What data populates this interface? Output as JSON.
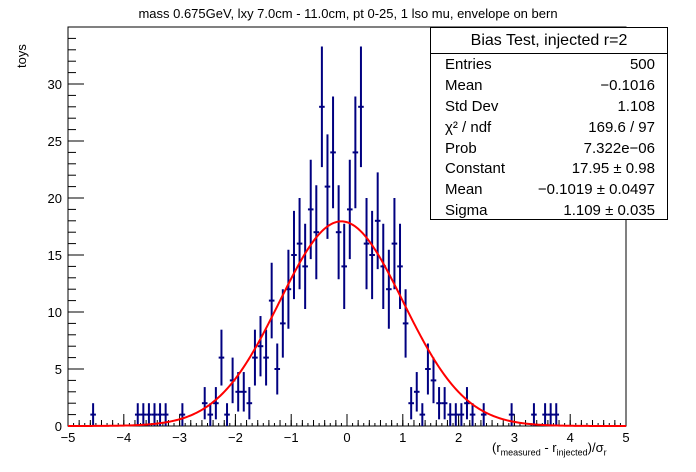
{
  "title": "mass 0.675GeV, lxy 7.0cm - 11.0cm, pt 0-25, 1 lso mu, envelope on bern",
  "ylabel": "toys",
  "xlabel": {
    "pre": "(r",
    "sub1": "measured",
    "mid": " - r",
    "sub2": "injected",
    "post": ")/σ",
    "sub3": "r"
  },
  "stats": {
    "title": "Bias Test, injected r=2",
    "rows": [
      {
        "label": "Entries",
        "value": "500"
      },
      {
        "label": "Mean",
        "value": "−0.1016"
      },
      {
        "label": "Std Dev",
        "value": "1.108"
      },
      {
        "label": "χ² / ndf",
        "value": "169.6 / 97"
      },
      {
        "label": "Prob",
        "value": "7.322e−06"
      },
      {
        "label": "Constant",
        "value": "17.95 ± 0.98"
      },
      {
        "label": "Mean",
        "value": "−0.1019 ± 0.0497"
      },
      {
        "label": "Sigma",
        "value": "1.109 ± 0.035"
      }
    ]
  },
  "chart_data": {
    "type": "scatter",
    "xlim": [
      -5,
      5
    ],
    "ylim": [
      0,
      35
    ],
    "bin_width": 0.1,
    "x_ticks": [
      "−5",
      "−4",
      "−3",
      "−2",
      "−1",
      "0",
      "1",
      "2",
      "3",
      "4",
      "5"
    ],
    "y_ticks": [
      "0",
      "5",
      "10",
      "15",
      "20",
      "25",
      "30"
    ],
    "grid": false,
    "histogram": {
      "x": [
        -4.55,
        -3.75,
        -3.65,
        -3.55,
        -3.45,
        -3.35,
        -3.25,
        -2.95,
        -2.55,
        -2.45,
        -2.35,
        -2.25,
        -2.15,
        -2.05,
        -1.95,
        -1.85,
        -1.75,
        -1.65,
        -1.55,
        -1.45,
        -1.35,
        -1.25,
        -1.15,
        -1.05,
        -0.95,
        -0.85,
        -0.75,
        -0.65,
        -0.55,
        -0.45,
        -0.35,
        -0.25,
        -0.15,
        -0.05,
        0.05,
        0.15,
        0.25,
        0.35,
        0.45,
        0.55,
        0.65,
        0.75,
        0.85,
        0.95,
        1.05,
        1.15,
        1.25,
        1.35,
        1.45,
        1.55,
        1.65,
        1.75,
        1.85,
        1.95,
        2.05,
        2.15,
        2.25,
        2.45,
        2.95,
        3.35,
        3.55,
        3.65,
        3.75
      ],
      "y": [
        1,
        1,
        1,
        1,
        1,
        1,
        1,
        1,
        2,
        1,
        2,
        6,
        1,
        4,
        3,
        3,
        2,
        6,
        7,
        6,
        11,
        5,
        9,
        12,
        15,
        16,
        14,
        19,
        17,
        28,
        21,
        24,
        17,
        14,
        19,
        24,
        28,
        16,
        15,
        18,
        14,
        12,
        16,
        14,
        9,
        2,
        3,
        1,
        5,
        4,
        2,
        2,
        1,
        1,
        1,
        2,
        1,
        1,
        1,
        1,
        1,
        1,
        1
      ]
    },
    "fit": {
      "function": "gaus",
      "constant": 17.95,
      "mean": -0.1019,
      "sigma": 1.109
    },
    "marker_color": "#000080",
    "fit_color": "#ff0000"
  }
}
